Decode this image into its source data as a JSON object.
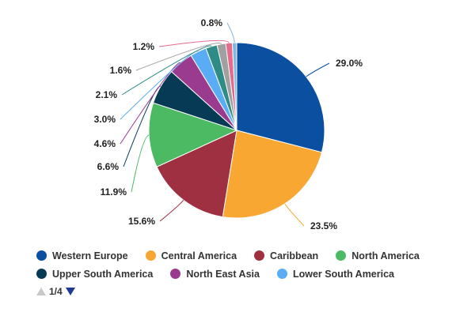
{
  "chart_data": {
    "type": "pie",
    "title": "",
    "slices": [
      {
        "value": 29.0,
        "label": "29.0%",
        "color": "#0b4fa0"
      },
      {
        "value": 23.5,
        "label": "23.5%",
        "color": "#f8a733"
      },
      {
        "value": 15.6,
        "label": "15.6%",
        "color": "#9e3042"
      },
      {
        "value": 11.9,
        "label": "11.9%",
        "color": "#4cb963"
      },
      {
        "value": 6.6,
        "label": "6.6%",
        "color": "#063a55"
      },
      {
        "value": 4.6,
        "label": "4.6%",
        "color": "#9b3b8f"
      },
      {
        "value": 3.0,
        "label": "3.0%",
        "color": "#5aacf5"
      },
      {
        "value": 2.1,
        "label": "2.1%",
        "color": "#2e8b85"
      },
      {
        "value": 1.6,
        "label": "1.6%",
        "color": "#a0a0a0"
      },
      {
        "value": 1.2,
        "label": "1.2%",
        "color": "#e56a8c"
      },
      {
        "value": 0.8,
        "label": "0.8%",
        "color": "#7fb8d9"
      }
    ],
    "legend": {
      "placement": "bottom",
      "rows": [
        [
          {
            "name": "Western Europe",
            "color": "#0b4fa0"
          },
          {
            "name": "Central America",
            "color": "#f8a733"
          },
          {
            "name": "Caribbean",
            "color": "#9e3042"
          },
          {
            "name": "North America",
            "color": "#4cb963"
          }
        ],
        [
          {
            "name": "Upper South America",
            "color": "#063a55"
          },
          {
            "name": "North East Asia",
            "color": "#9b3b8f"
          },
          {
            "name": "Lower South America",
            "color": "#5aacf5"
          }
        ]
      ],
      "page": "1/4"
    }
  }
}
